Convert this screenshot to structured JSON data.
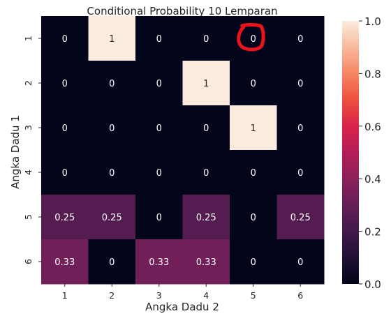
{
  "chart_data": {
    "type": "heatmap",
    "title": "Conditional Probability 10 Lemparan",
    "xlabel": "Angka Dadu 2",
    "ylabel": "Angka Dadu 1",
    "x_categories": [
      "1",
      "2",
      "3",
      "4",
      "5",
      "6"
    ],
    "y_categories": [
      "1",
      "2",
      "3",
      "4",
      "5",
      "6"
    ],
    "values": [
      [
        0,
        1,
        0,
        0,
        0,
        0
      ],
      [
        0,
        0,
        0,
        1,
        0,
        0
      ],
      [
        0,
        0,
        0,
        0,
        1,
        0
      ],
      [
        0,
        0,
        0,
        0,
        0,
        0
      ],
      [
        0.25,
        0.25,
        0,
        0.25,
        0,
        0.25
      ],
      [
        0.33,
        0,
        0.33,
        0.33,
        0,
        0
      ]
    ],
    "annotations": [
      [
        "0",
        "1",
        "0",
        "0",
        "0",
        "0"
      ],
      [
        "0",
        "0",
        "0",
        "1",
        "0",
        "0"
      ],
      [
        "0",
        "0",
        "0",
        "0",
        "1",
        "0"
      ],
      [
        "0",
        "0",
        "0",
        "0",
        "0",
        "0"
      ],
      [
        "0.25",
        "0.25",
        "0",
        "0.25",
        "0",
        "0.25"
      ],
      [
        "0.33",
        "0",
        "0.33",
        "0.33",
        "0",
        "0"
      ]
    ],
    "colorbar": {
      "range": [
        0,
        1
      ],
      "ticks": [
        "0.0",
        "0.2",
        "0.4",
        "0.6",
        "0.8",
        "1.0"
      ],
      "colormap": "rocket"
    },
    "highlight": {
      "row": 0,
      "col": 4,
      "color": "#e8141c"
    }
  }
}
